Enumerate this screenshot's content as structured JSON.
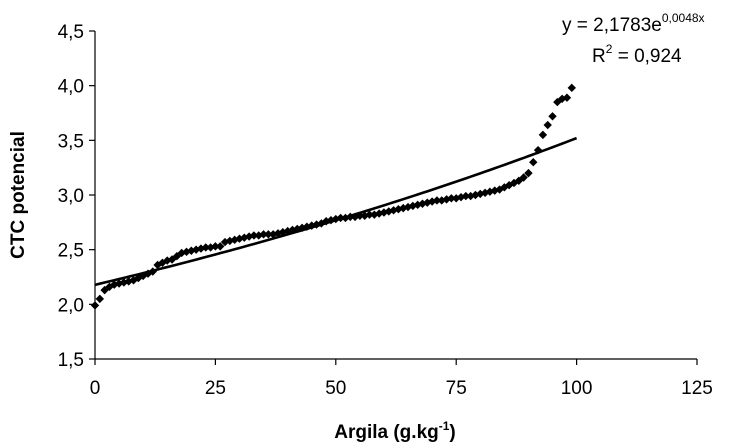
{
  "chart_data": {
    "type": "scatter",
    "xlabel": "Argila (g.kg",
    "xlabel_sup": "-1",
    "xlabel_end": ")",
    "ylabel": "CTC potencial",
    "xlim": [
      0,
      125
    ],
    "ylim": [
      1.5,
      4.5
    ],
    "x_ticks": [
      "0",
      "25",
      "50",
      "75",
      "100",
      "125"
    ],
    "y_ticks": [
      "1,5",
      "2,0",
      "2,5",
      "3,0",
      "3,5",
      "4,0",
      "4,5"
    ],
    "grid": false,
    "legend": "none",
    "marker": "diamond",
    "marker_color": "#000000",
    "trendline": {
      "type": "exponential",
      "a": 2.1783,
      "b": 0.0048,
      "x_range": [
        0,
        100
      ],
      "equation_text": {
        "prefix": "y = 2,1783e",
        "exponent": "0,0048x"
      },
      "r2_text": {
        "prefix": "R",
        "sup": "2",
        "suffix": " = 0,924"
      }
    },
    "series": [
      {
        "x": [
          0,
          1,
          2,
          3,
          4,
          5,
          6,
          7,
          8,
          9,
          10,
          11,
          12,
          13,
          14,
          15,
          16,
          17,
          18,
          19,
          20,
          21,
          22,
          23,
          24,
          25,
          26,
          27,
          28,
          29,
          30,
          31,
          32,
          33,
          34,
          35,
          36,
          37,
          38,
          39,
          40,
          41,
          42,
          43,
          44,
          45,
          46,
          47,
          48,
          49,
          50,
          51,
          52,
          53,
          54,
          55,
          56,
          57,
          58,
          59,
          60,
          61,
          62,
          63,
          64,
          65,
          66,
          67,
          68,
          69,
          70,
          71,
          72,
          73,
          74,
          75,
          76,
          77,
          78,
          79,
          80,
          81,
          82,
          83,
          84,
          85,
          86,
          87,
          88,
          89,
          90,
          91,
          92,
          93,
          94,
          95,
          96,
          97,
          98,
          99
        ],
        "y": [
          1.99,
          2.05,
          2.13,
          2.16,
          2.18,
          2.19,
          2.2,
          2.21,
          2.22,
          2.24,
          2.26,
          2.28,
          2.3,
          2.36,
          2.38,
          2.4,
          2.41,
          2.44,
          2.47,
          2.48,
          2.49,
          2.5,
          2.51,
          2.52,
          2.52,
          2.53,
          2.53,
          2.57,
          2.58,
          2.59,
          2.6,
          2.61,
          2.62,
          2.63,
          2.63,
          2.64,
          2.64,
          2.64,
          2.65,
          2.66,
          2.67,
          2.68,
          2.69,
          2.7,
          2.71,
          2.72,
          2.73,
          2.74,
          2.76,
          2.77,
          2.78,
          2.79,
          2.79,
          2.8,
          2.8,
          2.81,
          2.81,
          2.82,
          2.82,
          2.83,
          2.84,
          2.85,
          2.86,
          2.87,
          2.88,
          2.89,
          2.9,
          2.91,
          2.92,
          2.93,
          2.94,
          2.95,
          2.95,
          2.96,
          2.97,
          2.97,
          2.98,
          2.99,
          2.99,
          3.0,
          3.01,
          3.02,
          3.03,
          3.04,
          3.05,
          3.07,
          3.09,
          3.11,
          3.13,
          3.16,
          3.2,
          3.3,
          3.41,
          3.55,
          3.64,
          3.72,
          3.85,
          3.88,
          3.89,
          3.98
        ]
      }
    ]
  }
}
